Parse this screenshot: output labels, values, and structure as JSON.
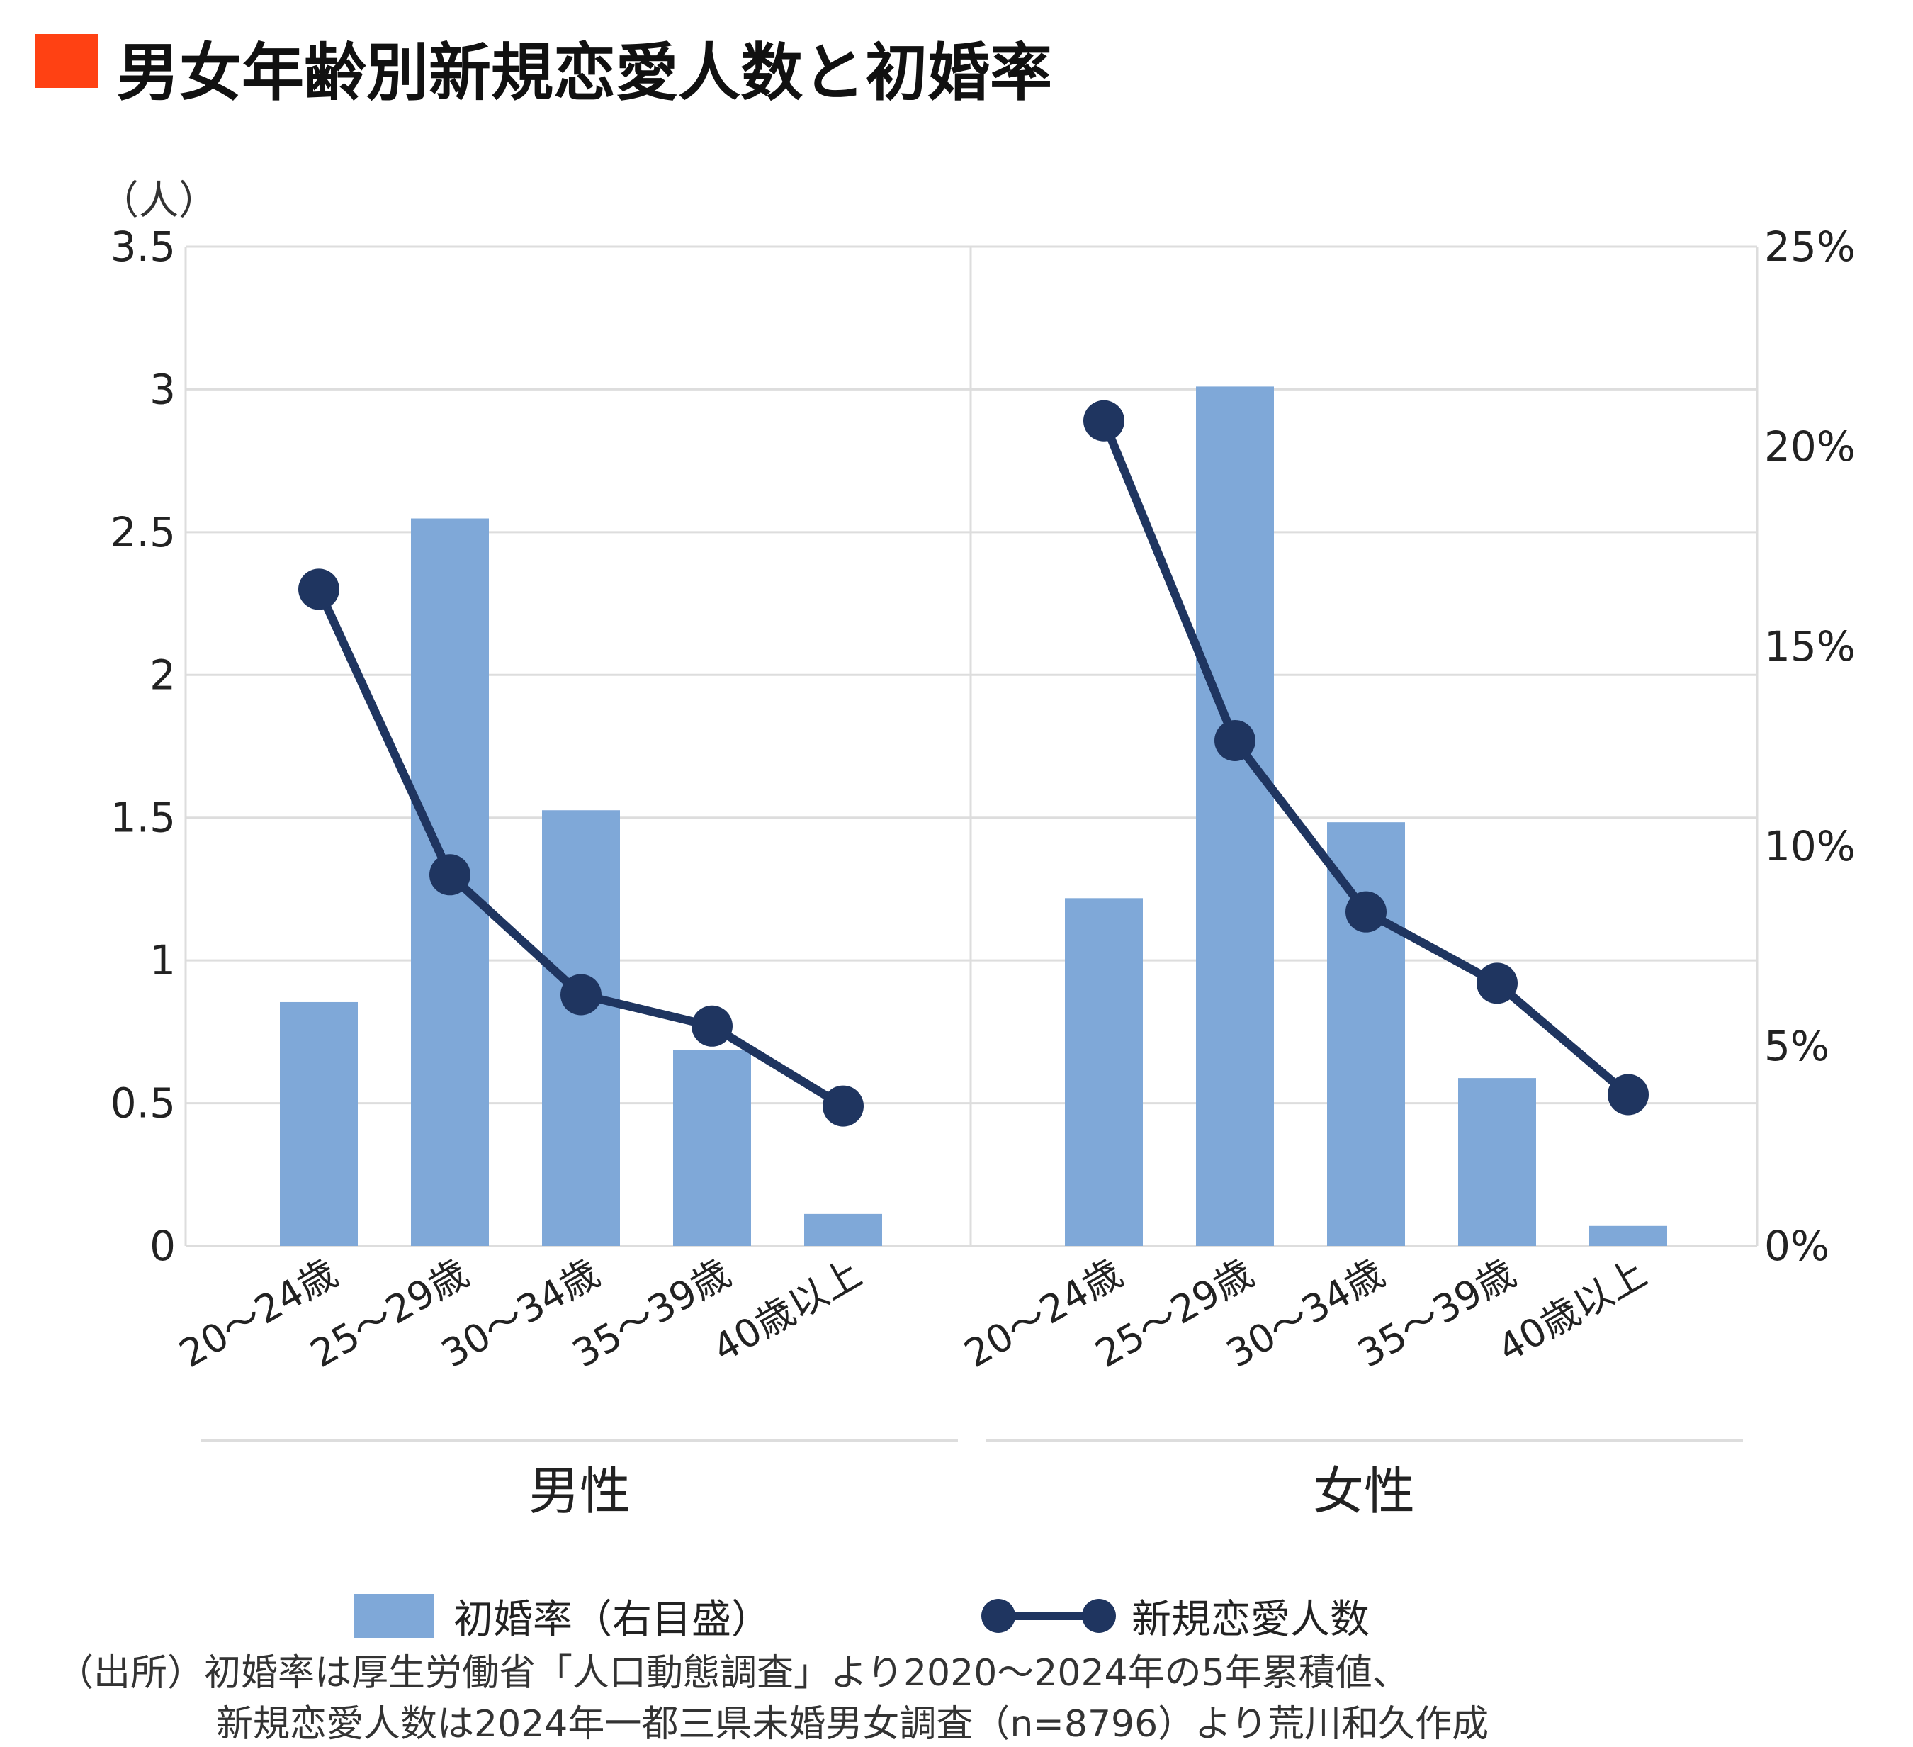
{
  "title": "男女年齢別新規恋愛人数と初婚率",
  "chart_data": {
    "type": "bar+line",
    "left_axis": {
      "unit_label": "（人）",
      "ticks": [
        "0",
        "0.5",
        "1",
        "1.5",
        "2",
        "2.5",
        "3",
        "3.5"
      ],
      "range": [
        0,
        3.5
      ]
    },
    "right_axis": {
      "ticks": [
        "0%",
        "5%",
        "10%",
        "15%",
        "20%",
        "25%"
      ],
      "range": [
        0,
        25
      ]
    },
    "grid": true,
    "groups": [
      {
        "name": "男性",
        "categories": [
          "20～24歳",
          "25～29歳",
          "30～34歳",
          "35～39歳",
          "40歳以上"
        ],
        "first_marriage_rate_pct": [
          6.1,
          18.2,
          10.9,
          4.9,
          0.8
        ],
        "new_romance_count": [
          2.3,
          1.3,
          0.88,
          0.77,
          0.49
        ]
      },
      {
        "name": "女性",
        "categories": [
          "20～24歳",
          "25～29歳",
          "30～34歳",
          "35～39歳",
          "40歳以上"
        ],
        "first_marriage_rate_pct": [
          8.7,
          21.5,
          10.6,
          4.2,
          0.5
        ],
        "new_romance_count": [
          2.89,
          1.77,
          1.17,
          0.92,
          0.53
        ]
      }
    ],
    "series": [
      {
        "name": "初婚率（右目盛）",
        "type": "bar",
        "axis": "right",
        "color": "#7fa8d8"
      },
      {
        "name": "新規恋愛人数",
        "type": "line",
        "axis": "left",
        "color": "#1f3560"
      }
    ],
    "legend_position": "bottom"
  },
  "source": {
    "line1": "（出所）初婚率は厚生労働省「人口動態調査」より2020～2024年の5年累積値、",
    "line2": "新規恋愛人数は2024年一都三県未婚男女調査（n=8796）より荒川和久作成"
  }
}
